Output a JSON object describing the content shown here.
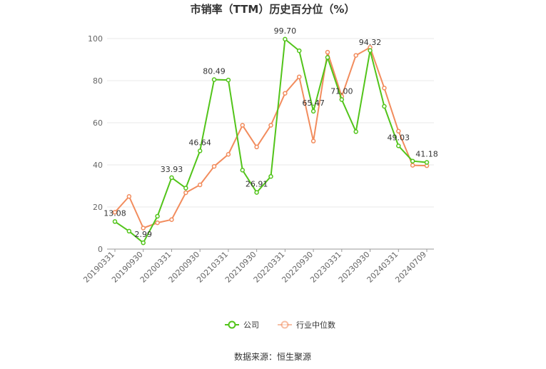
{
  "chart_data": {
    "type": "line",
    "title": "市销率（TTM）历史百分位（%）",
    "xlabel": "",
    "ylabel": "",
    "ylim": [
      0,
      100
    ],
    "yticks": [
      0,
      20,
      40,
      60,
      80,
      100
    ],
    "x_tick_labels": [
      "20190331",
      "20190930",
      "20200331",
      "20200930",
      "20210331",
      "20210930",
      "20220331",
      "20220930",
      "20230331",
      "20230930",
      "20240331",
      "20240709"
    ],
    "grid": true,
    "legend_position": "bottom",
    "series": [
      {
        "name": "公司",
        "color": "#52c41a",
        "values": [
          13.08,
          8.5,
          2.99,
          15.6,
          33.93,
          29.0,
          46.64,
          80.49,
          80.3,
          37.5,
          26.91,
          34.5,
          99.7,
          94.2,
          65.47,
          91.0,
          71.0,
          55.8,
          94.32,
          67.8,
          49.03,
          41.8,
          41.18
        ]
      },
      {
        "name": "行业中位数",
        "color": "#f28c5d",
        "values": [
          17.5,
          25.0,
          10.0,
          12.5,
          14.0,
          26.8,
          30.5,
          39.3,
          45.0,
          58.8,
          48.5,
          58.8,
          74.0,
          81.8,
          51.3,
          93.5,
          72.5,
          92.0,
          95.8,
          76.5,
          56.0,
          39.8,
          39.6
        ]
      }
    ],
    "data_labels": [
      {
        "series": 0,
        "index": 0,
        "text": "13.08"
      },
      {
        "series": 0,
        "index": 2,
        "text": "2.99"
      },
      {
        "series": 0,
        "index": 4,
        "text": "33.93"
      },
      {
        "series": 0,
        "index": 6,
        "text": "46.64"
      },
      {
        "series": 0,
        "index": 7,
        "text": "80.49"
      },
      {
        "series": 0,
        "index": 10,
        "text": "26.91"
      },
      {
        "series": 0,
        "index": 12,
        "text": "99.70"
      },
      {
        "series": 0,
        "index": 14,
        "text": "65.47"
      },
      {
        "series": 0,
        "index": 16,
        "text": "71.00"
      },
      {
        "series": 0,
        "index": 18,
        "text": "94.32"
      },
      {
        "series": 0,
        "index": 20,
        "text": "49.03"
      },
      {
        "series": 0,
        "index": 22,
        "text": "41.18"
      }
    ]
  },
  "footer": {
    "source": "数据来源：恒生聚源"
  }
}
